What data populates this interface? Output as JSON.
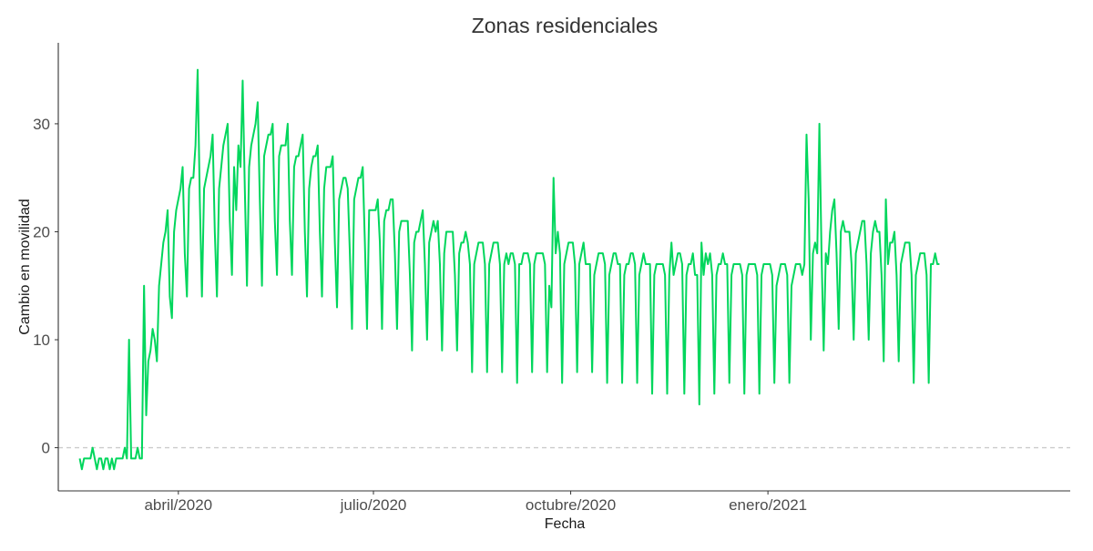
{
  "chart_data": {
    "type": "line",
    "title": "Zonas residenciales",
    "xlabel": "Fecha",
    "ylabel": "Cambio en movilidad",
    "ylim": [
      -4,
      37.5
    ],
    "xlim": [
      "2020-02-05",
      "2021-05-22"
    ],
    "yticks": [
      0,
      10,
      20,
      30
    ],
    "xticks": [
      {
        "date": "2020-04-01",
        "label": "abril/2020"
      },
      {
        "date": "2020-07-01",
        "label": "julio/2020"
      },
      {
        "date": "2020-10-01",
        "label": "octubre/2020"
      },
      {
        "date": "2021-01-01",
        "label": "enero/2021"
      }
    ],
    "reference_line": {
      "y": 0,
      "style": "dashed",
      "color": "#cccccc"
    },
    "grid": false,
    "colors": {
      "series": "#00d65c"
    },
    "series": [
      {
        "x_start": "2020-02-15",
        "x_step_days": 1,
        "values": [
          -1,
          -2,
          -1,
          -1,
          -1,
          -1,
          0,
          -1,
          -2,
          -1,
          -1,
          -2,
          -1,
          -1,
          -2,
          -1,
          -2,
          -1,
          -1,
          -1,
          -1,
          0,
          -1,
          10,
          -1,
          -1,
          -1,
          0,
          -1,
          -1,
          15,
          3,
          8,
          9,
          11,
          10,
          8,
          15,
          17,
          19,
          20,
          22,
          14,
          12,
          20,
          22,
          23,
          24,
          26,
          18,
          14,
          24,
          25,
          25,
          28,
          35,
          23,
          14,
          24,
          25,
          26,
          27,
          29,
          20,
          14,
          24,
          26,
          28,
          29,
          30,
          21,
          16,
          26,
          22,
          28,
          26,
          34,
          24,
          15,
          26,
          28,
          29,
          30,
          32,
          23,
          15,
          27,
          28,
          29,
          29,
          30,
          21,
          16,
          27,
          28,
          28,
          28,
          30,
          21,
          16,
          26,
          27,
          27,
          28,
          29,
          20,
          14,
          24,
          26,
          27,
          27,
          28,
          20,
          14,
          24,
          26,
          26,
          26,
          27,
          19,
          13,
          23,
          24,
          25,
          25,
          24,
          18,
          11,
          23,
          24,
          25,
          25,
          26,
          19,
          11,
          22,
          22,
          22,
          22,
          23,
          19,
          11,
          21,
          22,
          22,
          23,
          23,
          18,
          11,
          20,
          21,
          21,
          21,
          21,
          16,
          9,
          19,
          20,
          20,
          21,
          22,
          17,
          10,
          19,
          20,
          21,
          20,
          21,
          17,
          9,
          18,
          20,
          20,
          20,
          20,
          16,
          9,
          18,
          19,
          19,
          20,
          19,
          17,
          7,
          17,
          18,
          19,
          19,
          19,
          17,
          7,
          17,
          18,
          19,
          19,
          19,
          17,
          7,
          17,
          18,
          17,
          18,
          18,
          17,
          6,
          17,
          17,
          18,
          18,
          18,
          17,
          7,
          17,
          18,
          18,
          18,
          18,
          17,
          7,
          15,
          13,
          25,
          18,
          20,
          18,
          6,
          17,
          18,
          19,
          19,
          19,
          17,
          7,
          17,
          18,
          19,
          17,
          17,
          17,
          7,
          16,
          17,
          18,
          18,
          18,
          17,
          6,
          16,
          17,
          18,
          18,
          17,
          17,
          6,
          16,
          17,
          17,
          18,
          18,
          17,
          6,
          16,
          17,
          18,
          17,
          17,
          17,
          5,
          16,
          17,
          17,
          17,
          17,
          16,
          5,
          16,
          19,
          16,
          17,
          18,
          18,
          17,
          5,
          16,
          17,
          17,
          18,
          16,
          16,
          4,
          19,
          16,
          18,
          17,
          18,
          16,
          5,
          16,
          17,
          17,
          18,
          17,
          17,
          6,
          16,
          17,
          17,
          17,
          17,
          16,
          5,
          16,
          17,
          17,
          17,
          17,
          16,
          5,
          16,
          17,
          17,
          17,
          17,
          16,
          6,
          15,
          16,
          17,
          17,
          17,
          16,
          6,
          15,
          16,
          17,
          17,
          17,
          16,
          17,
          29,
          23,
          10,
          18,
          19,
          18,
          30,
          18,
          9,
          18,
          17,
          20,
          22,
          23,
          18,
          11,
          20,
          21,
          20,
          20,
          20,
          17,
          10,
          18,
          19,
          20,
          21,
          21,
          17,
          10,
          18,
          20,
          21,
          20,
          20,
          16,
          8,
          23,
          17,
          19,
          19,
          20,
          16,
          8,
          17,
          18,
          19,
          19,
          19,
          16,
          6,
          16,
          17,
          18,
          18,
          18,
          16,
          6,
          17,
          17,
          18,
          17,
          17
        ]
      }
    ]
  }
}
